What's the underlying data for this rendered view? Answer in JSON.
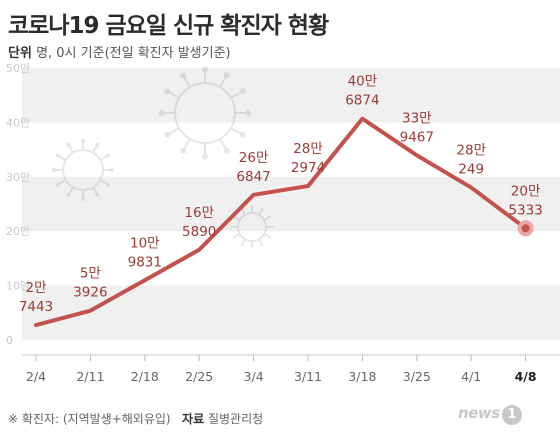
{
  "title": "코로나19 금요일 신규 확진자 현황",
  "unit": {
    "label": "단위",
    "text": "명, 0시 기준(전일 확진자 발생기준)"
  },
  "footer": {
    "note": "※ 확진자: (지역발생+해외유입)",
    "source_label": "자료",
    "source": "질병관리청"
  },
  "brand": {
    "name": "news",
    "num": "1"
  },
  "colors": {
    "line": "#c4524c",
    "label": "#9c3a36",
    "band": "#f0f0f0",
    "last_point": "#e8a8a4"
  },
  "chart_data": {
    "type": "line",
    "title": "코로나19 금요일 신규 확진자 현황",
    "categories": [
      "2/4",
      "2/11",
      "2/18",
      "2/25",
      "3/4",
      "3/11",
      "3/18",
      "3/25",
      "4/1",
      "4/8"
    ],
    "values": [
      27443,
      53926,
      109831,
      165890,
      266847,
      282974,
      406874,
      339467,
      280249,
      205333
    ],
    "labels": [
      [
        "2만",
        "7443"
      ],
      [
        "5만",
        "3926"
      ],
      [
        "10만",
        "9831"
      ],
      [
        "16만",
        "5890"
      ],
      [
        "26만",
        "6847"
      ],
      [
        "28만",
        "2974"
      ],
      [
        "40만",
        "6874"
      ],
      [
        "33만",
        "9467"
      ],
      [
        "28만",
        "249"
      ],
      [
        "20만",
        "5333"
      ]
    ],
    "yticks": [
      "0",
      "10만",
      "20만",
      "30만",
      "40만",
      "50만"
    ],
    "ylim": [
      0,
      500000
    ],
    "xlabel": "",
    "ylabel": "",
    "grid": "alternating-bands"
  }
}
